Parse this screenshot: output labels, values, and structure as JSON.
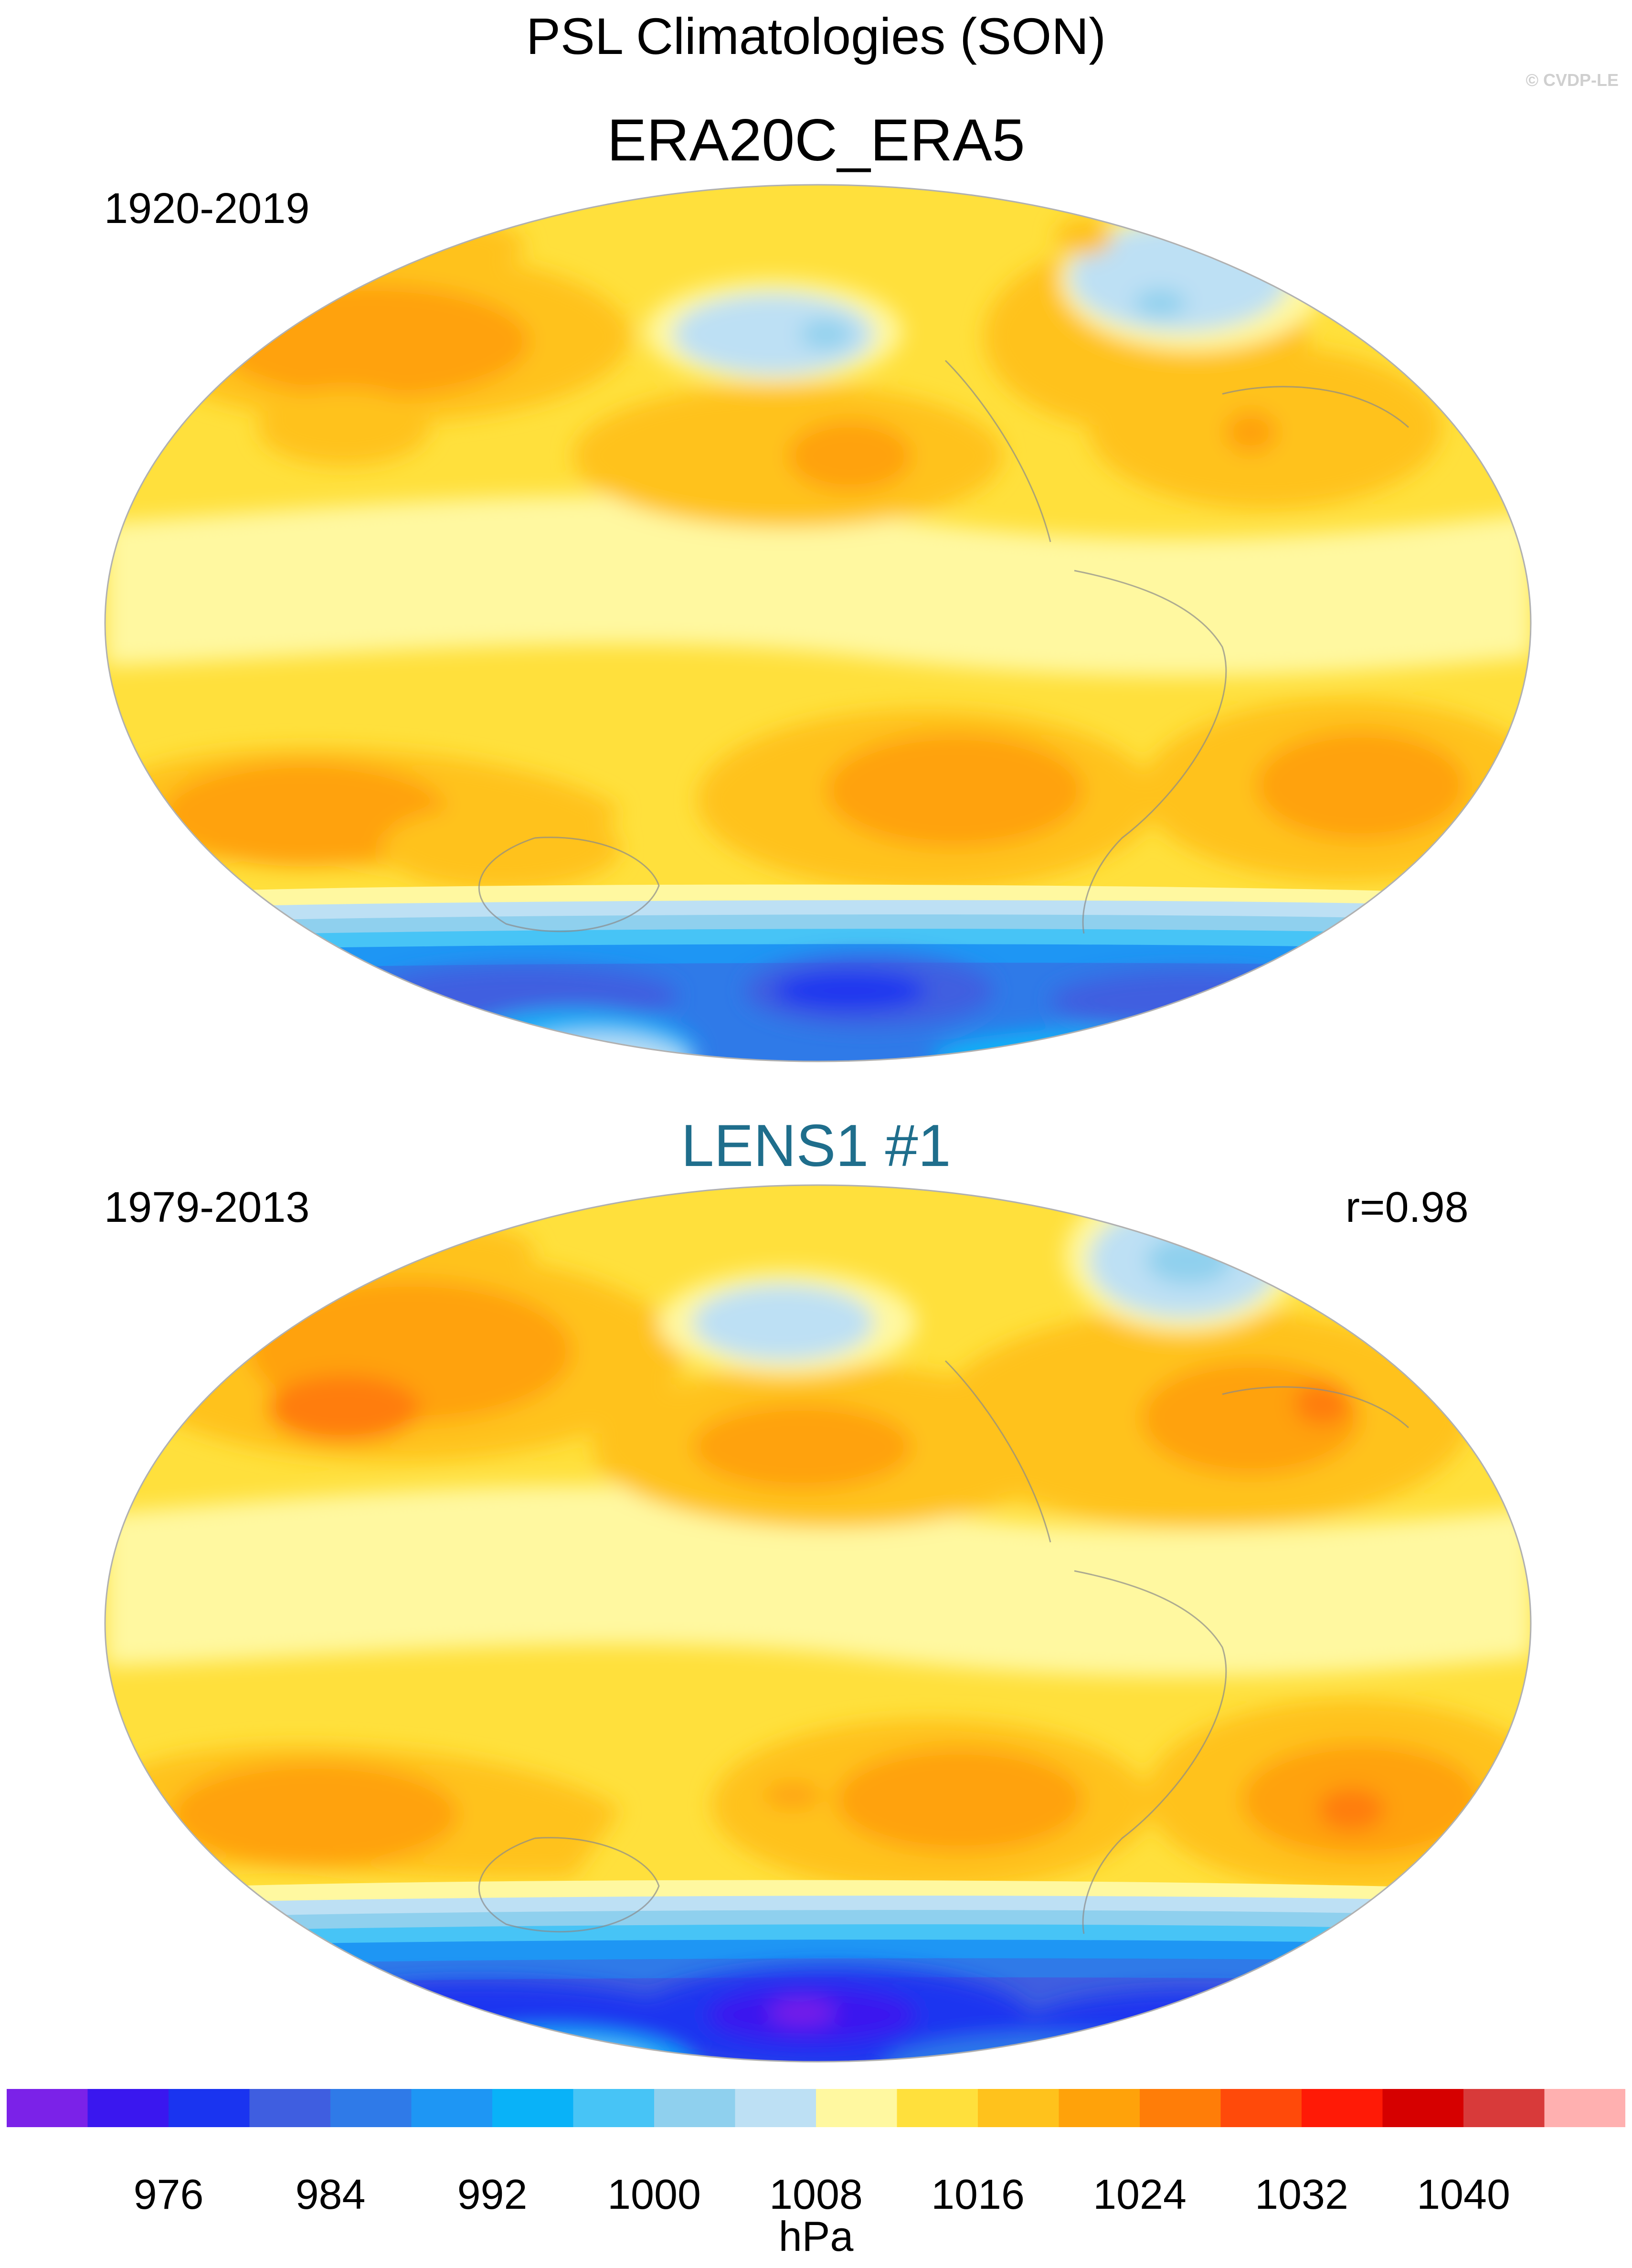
{
  "title": "PSL Climatologies (SON)",
  "watermark": "© CVDP-LE",
  "panels": [
    {
      "title": "ERA20C_ERA5",
      "period": "1920-2019",
      "correlation": ""
    },
    {
      "title": "LENS1 #1",
      "period": "1979-2013",
      "correlation": "r=0.98"
    }
  ],
  "colorbar": {
    "units": "hPa",
    "tick_labels": [
      "976",
      "984",
      "992",
      "1000",
      "1008",
      "1016",
      "1024",
      "1032",
      "1040"
    ],
    "colors": [
      "#7b22e8",
      "#3a17ef",
      "#1a34f0",
      "#3f5ee0",
      "#2f7ae8",
      "#1e96f4",
      "#09b2f8",
      "#47c4f6",
      "#8fd0ee",
      "#bde0f4",
      "#fff8a0",
      "#ffe03c",
      "#ffc21c",
      "#ffa20a",
      "#ff7d08",
      "#ff4a0a",
      "#ff1a06",
      "#d60000",
      "#d83a3a",
      "#ffb0b0"
    ]
  },
  "icons": [
    "world-map-robinson"
  ]
}
